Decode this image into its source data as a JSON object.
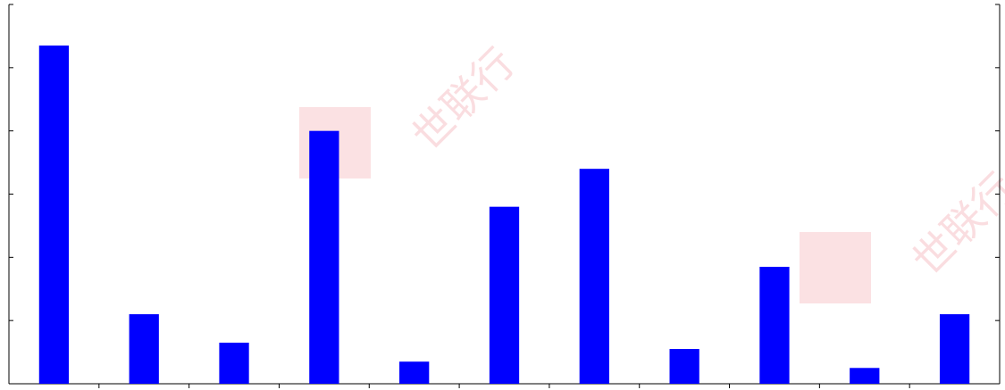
{
  "watermark": {
    "text": "世联行",
    "color": "#f7c8cc"
  },
  "chart_data": {
    "type": "bar",
    "categories": [
      "",
      "",
      "",
      "",
      "",
      "",
      "",
      "",
      "",
      "",
      ""
    ],
    "values": [
      5.35,
      1.1,
      0.65,
      4.0,
      0.35,
      2.8,
      3.4,
      0.55,
      1.85,
      0.25,
      1.1
    ],
    "ylim": [
      0,
      6
    ],
    "yticks": [
      0,
      1,
      2,
      3,
      4,
      5,
      6
    ],
    "bar_color": "#0000ff",
    "axis_color": "#000000",
    "grid": false,
    "legend": "none"
  }
}
